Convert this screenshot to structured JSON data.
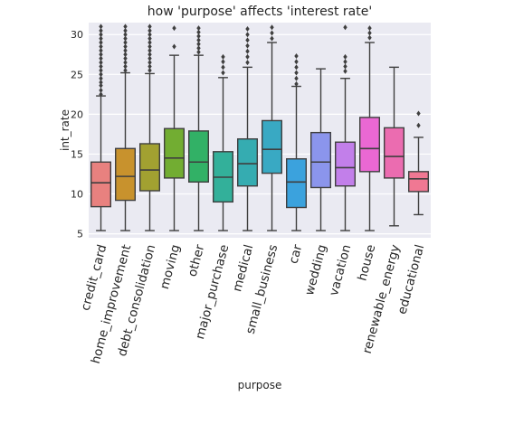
{
  "chart_data": {
    "type": "box",
    "title": "how 'purpose' affects 'interest rate'",
    "xlabel": "purpose",
    "ylabel": "int_rate",
    "ylim": [
      4.5,
      31.5
    ],
    "yticks": [
      5,
      10,
      15,
      20,
      25,
      30
    ],
    "grid": true,
    "legend": "none",
    "categories": [
      "credit_card",
      "home_improvement",
      "debt_consolidation",
      "moving",
      "other",
      "major_purchase",
      "medical",
      "small_business",
      "car",
      "wedding",
      "vacation",
      "house",
      "renewable_energy",
      "educational"
    ],
    "colors": [
      "#e8817f",
      "#c8922d",
      "#a2a131",
      "#72ad32",
      "#32b166",
      "#33b09a",
      "#35acb1",
      "#39a9c3",
      "#3ba2dd",
      "#8b95ec",
      "#c27fea",
      "#ea68d3",
      "#eb6cb0",
      "#f07893"
    ],
    "series": [
      {
        "name": "credit_card",
        "min": 5.4,
        "q1": 8.4,
        "median": 11.4,
        "q3": 14.0,
        "max": 22.3,
        "outliers": [
          22.5,
          23,
          23.6,
          24,
          24.5,
          25,
          25.5,
          26,
          26.5,
          27,
          27.5,
          28,
          28.5,
          29,
          29.5,
          30,
          30.5,
          31
        ]
      },
      {
        "name": "home_improvement",
        "min": 5.4,
        "q1": 9.2,
        "median": 12.2,
        "q3": 15.7,
        "max": 25.2,
        "outliers": [
          25.5,
          26,
          26.5,
          27,
          27.5,
          28,
          28.5,
          29,
          29.5,
          30,
          30.5,
          31
        ]
      },
      {
        "name": "debt_consolidation",
        "min": 5.4,
        "q1": 10.4,
        "median": 13.0,
        "q3": 16.3,
        "max": 25.1,
        "outliers": [
          25.5,
          26,
          26.5,
          27,
          27.5,
          28,
          28.5,
          29,
          29.5,
          30,
          30.5,
          31
        ]
      },
      {
        "name": "moving",
        "min": 5.4,
        "q1": 12.0,
        "median": 14.5,
        "q3": 18.2,
        "max": 27.4,
        "outliers": [
          28.5,
          30.8
        ]
      },
      {
        "name": "other",
        "min": 5.4,
        "q1": 11.5,
        "median": 14.0,
        "q3": 17.9,
        "max": 27.4,
        "outliers": [
          27.8,
          28.3,
          28.8,
          29.3,
          29.8,
          30.3,
          30.8
        ]
      },
      {
        "name": "major_purchase",
        "min": 5.4,
        "q1": 9.0,
        "median": 12.1,
        "q3": 15.3,
        "max": 24.6,
        "outliers": [
          25.2,
          25.9,
          26.6,
          27.2
        ]
      },
      {
        "name": "medical",
        "min": 5.4,
        "q1": 11.0,
        "median": 13.8,
        "q3": 16.9,
        "max": 25.9,
        "outliers": [
          26.5,
          27.2,
          27.9,
          28.6,
          29.3,
          30.0,
          30.7
        ]
      },
      {
        "name": "small_business",
        "min": 5.4,
        "q1": 12.6,
        "median": 15.6,
        "q3": 19.2,
        "max": 29.0,
        "outliers": [
          29.5,
          30.2,
          30.9
        ]
      },
      {
        "name": "car",
        "min": 5.4,
        "q1": 8.3,
        "median": 11.5,
        "q3": 14.4,
        "max": 23.5,
        "outliers": [
          23.8,
          24.5,
          25.2,
          25.9,
          26.6,
          27.3
        ]
      },
      {
        "name": "wedding",
        "min": 5.4,
        "q1": 10.8,
        "median": 14.0,
        "q3": 17.7,
        "max": 25.7,
        "outliers": []
      },
      {
        "name": "vacation",
        "min": 5.4,
        "q1": 11.0,
        "median": 13.3,
        "q3": 16.5,
        "max": 24.5,
        "outliers": [
          25.4,
          26.0,
          26.6,
          27.2,
          30.9
        ]
      },
      {
        "name": "house",
        "min": 5.4,
        "q1": 12.8,
        "median": 15.7,
        "q3": 19.6,
        "max": 29.0,
        "outliers": [
          29.6,
          30.2,
          30.8
        ]
      },
      {
        "name": "renewable_energy",
        "min": 6.0,
        "q1": 12.0,
        "median": 14.7,
        "q3": 18.3,
        "max": 25.9,
        "outliers": []
      },
      {
        "name": "educational",
        "min": 7.4,
        "q1": 10.3,
        "median": 11.9,
        "q3": 12.8,
        "max": 17.1,
        "outliers": [
          18.6,
          20.1
        ]
      }
    ]
  }
}
